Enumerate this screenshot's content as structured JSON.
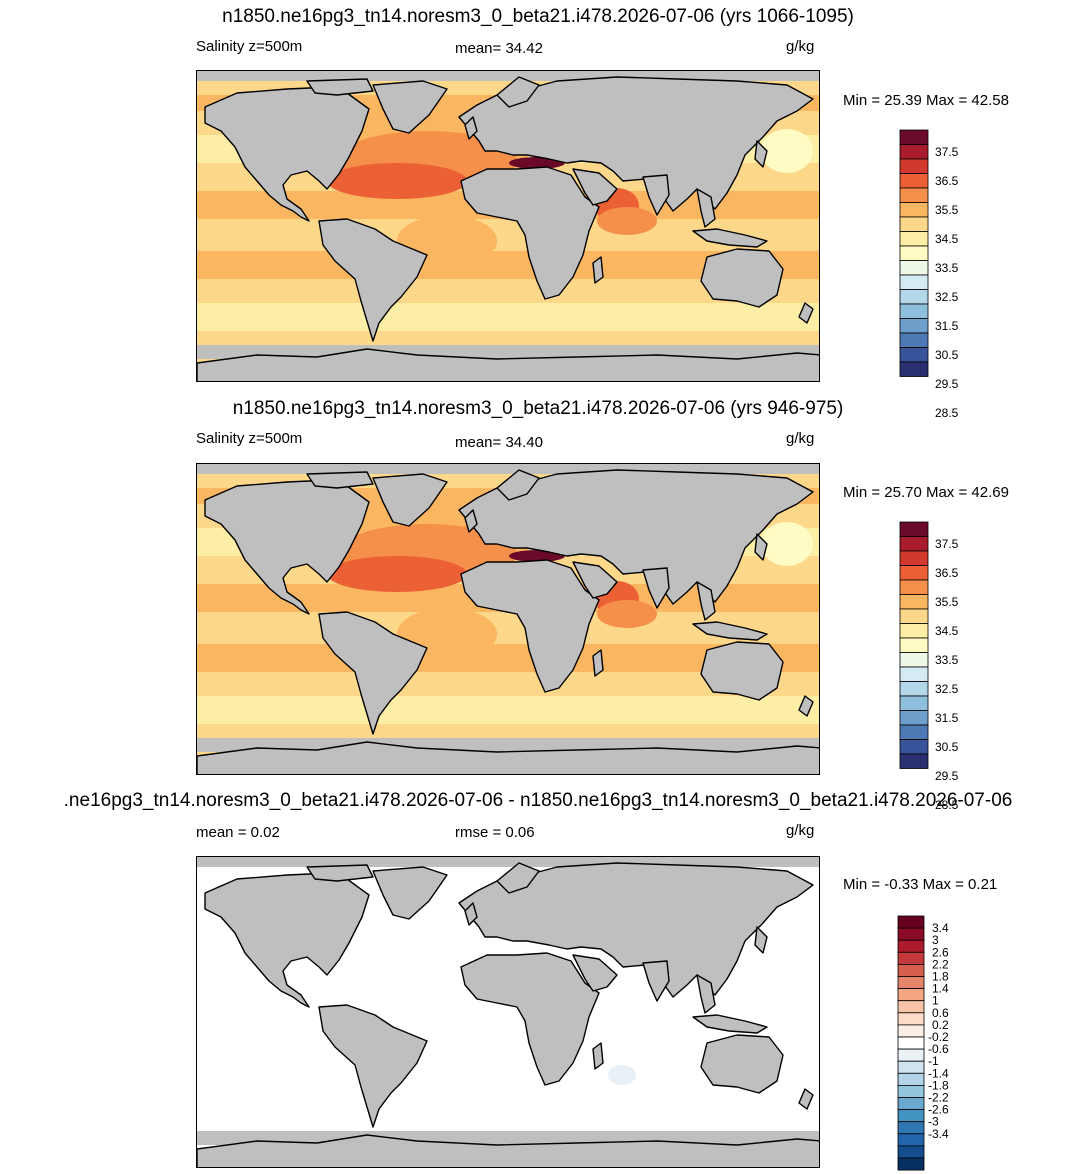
{
  "panels": [
    {
      "title": "n1850.ne16pg3_tn14.noresm3_0_beta21.i478.2026-07-06 (yrs 1066-1095)",
      "left_label": "Salinity z=500m",
      "center_label": "mean=  34.42",
      "units": "g/kg",
      "minmax": "Min =  25.39 Max =  42.58",
      "palette": "salinity",
      "colorbar_labels": [
        "37.5",
        "36.5",
        "35.5",
        "34.5",
        "33.5",
        "32.5",
        "31.5",
        "30.5",
        "29.5",
        "28.5"
      ],
      "colorbar_colors": [
        "#6a0a28",
        "#a81c2b",
        "#d0392c",
        "#ec6035",
        "#f5904a",
        "#fab660",
        "#fdd88a",
        "#fdeea6",
        "#fefcc4",
        "#eef8e6",
        "#d4ebf4",
        "#b2d8ea",
        "#8ebfdd",
        "#6fa0cc",
        "#4d79b4",
        "#37549a",
        "#2a2f72"
      ]
    },
    {
      "title": "n1850.ne16pg3_tn14.noresm3_0_beta21.i478.2026-07-06 (yrs 946-975)",
      "left_label": "Salinity z=500m",
      "center_label": "mean=  34.40",
      "units": "g/kg",
      "minmax": "Min =  25.70 Max =  42.69",
      "palette": "salinity",
      "colorbar_labels": [
        "37.5",
        "36.5",
        "35.5",
        "34.5",
        "33.5",
        "32.5",
        "31.5",
        "30.5",
        "29.5",
        "28.5"
      ],
      "colorbar_colors": [
        "#6a0a28",
        "#a81c2b",
        "#d0392c",
        "#ec6035",
        "#f5904a",
        "#fab660",
        "#fdd88a",
        "#fdeea6",
        "#fefcc4",
        "#eef8e6",
        "#d4ebf4",
        "#b2d8ea",
        "#8ebfdd",
        "#6fa0cc",
        "#4d79b4",
        "#37549a",
        "#2a2f72"
      ]
    },
    {
      "title": ".ne16pg3_tn14.noresm3_0_beta21.i478.2026-07-06 - n1850.ne16pg3_tn14.noresm3_0_beta21.i478.2026-07-06",
      "left_label": "mean =   0.02",
      "center_label": "rmse =   0.06",
      "units": "g/kg",
      "minmax": "Min =  -0.33 Max =   0.21",
      "palette": "difference",
      "colorbar_labels": [
        "3.4",
        "3",
        "2.6",
        "2.2",
        "1.8",
        "1.4",
        "1",
        "0.6",
        "0.2",
        "-0.2",
        "-0.6",
        "-1",
        "-1.4",
        "-1.8",
        "-2.2",
        "-2.6",
        "-3",
        "-3.4"
      ],
      "colorbar_colors": [
        "#67001f",
        "#8b0a26",
        "#ad1a2e",
        "#c4393a",
        "#d6604d",
        "#e58468",
        "#f4a582",
        "#f8c4a8",
        "#fddbc7",
        "#fbeee7",
        "#ffffff",
        "#e9f1f7",
        "#d1e5f0",
        "#b3d4e8",
        "#92c5de",
        "#6aa9cf",
        "#4393c3",
        "#2f77b3",
        "#2166ac",
        "#154e8f",
        "#053061"
      ]
    }
  ],
  "colors": {
    "land": "#bfbfbf",
    "coast": "#000000"
  }
}
